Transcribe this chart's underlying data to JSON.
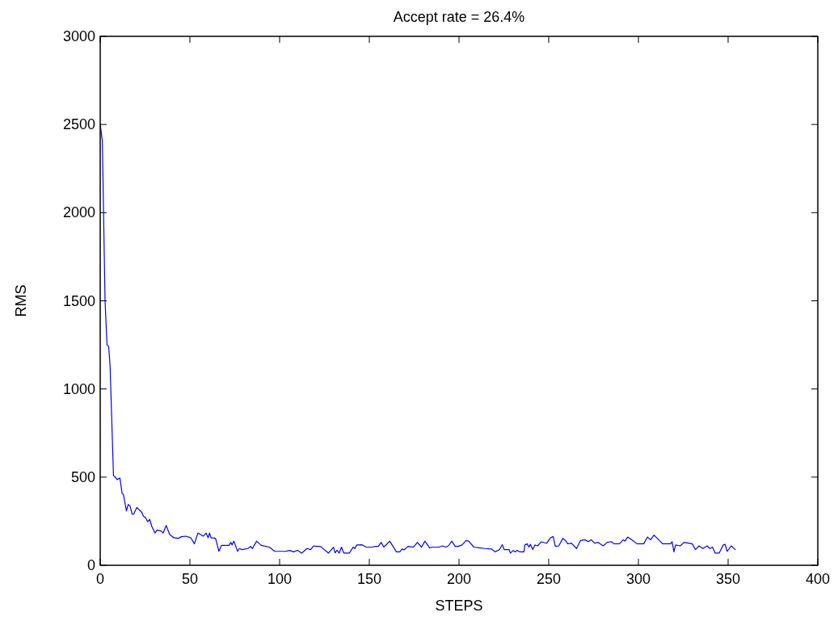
{
  "chart_data": {
    "type": "line",
    "title": "Accept rate = 26.4%",
    "xlabel": "STEPS",
    "ylabel": "RMS",
    "xlim": [
      0,
      400
    ],
    "xticks": [
      0,
      50,
      100,
      150,
      200,
      250,
      300,
      350,
      400
    ],
    "ylim": [
      0,
      3000
    ],
    "yticks": [
      0,
      500,
      1000,
      1500,
      2000,
      2500,
      3000
    ],
    "grid": false,
    "marker": "none",
    "line_style": "solid",
    "series": [
      {
        "color": "#0000ff",
        "x": [
          0,
          1.2,
          2.7,
          3.8,
          4.7,
          5.5,
          7.4,
          8.4,
          9.4,
          11,
          12.2,
          13,
          14.6,
          15.6,
          16.6,
          17.8,
          18.6,
          20.4,
          23.2,
          24.1,
          25.3,
          26.4,
          27.6,
          28.8,
          30.5,
          31.7,
          33.8,
          35.1,
          36.8,
          38.7,
          41,
          43.5,
          45.3,
          47.7,
          50.5,
          52.5,
          54.5,
          57.5,
          59,
          60.2,
          60.9,
          61.8,
          64.3,
          66.2,
          67.6,
          71.8,
          72.8,
          73.5,
          74.5,
          76.6,
          77.6,
          79.1,
          82.3,
          83.8,
          84.8,
          87.2,
          89.8,
          94.3,
          97.3,
          103.3,
          105.6,
          107.8,
          110,
          112.3,
          115.3,
          117.3,
          119,
          121,
          122.8,
          127.3,
          130,
          131,
          132,
          133.2,
          134.5,
          135.8,
          138.9,
          141,
          142,
          143,
          146,
          148.3,
          151.3,
          153.5,
          155,
          156.6,
          158.1,
          161.4,
          165.1,
          167,
          168.2,
          169.3,
          171.6,
          174.6,
          176.8,
          179.1,
          181,
          183.6,
          185,
          188.8,
          190.8,
          192.6,
          194.1,
          196,
          197.9,
          199.4,
          201.7,
          203.9,
          205.4,
          208.3,
          211.3,
          214.4,
          218.2,
          220.1,
          222.6,
          224.1,
          225.2,
          227.9,
          228.7,
          230.2,
          231.4,
          232.4,
          233.9,
          236.2,
          236.7,
          238,
          239,
          239.8,
          241.1,
          242.3,
          243.8,
          245.9,
          248.9,
          251,
          252.5,
          253.7,
          255.6,
          257.9,
          259.4,
          260.6,
          262.7,
          265.5,
          267.7,
          270,
          272.2,
          273.7,
          275.6,
          277.4,
          280.4,
          282.6,
          284.9,
          286.4,
          289.4,
          291.6,
          292.5,
          294,
          296.2,
          299.2,
          303,
          305,
          306.8,
          308.7,
          311.3,
          313.5,
          318,
          318.8,
          319.8,
          320.7,
          323.3,
          325.5,
          330,
          331.8,
          333.8,
          336,
          338.3,
          339.8,
          341.3,
          342.8,
          345,
          347.3,
          348.3,
          349.5,
          351.8,
          354
        ],
        "values": [
          2502,
          2407,
          1500,
          1250,
          1242,
          1133,
          508,
          500,
          486,
          495,
          408,
          400,
          308,
          345,
          337,
          290,
          290,
          328,
          300,
          278,
          270,
          247,
          260,
          220,
          183,
          200,
          195,
          183,
          226,
          175,
          156,
          153,
          162,
          165,
          156,
          122,
          183,
          165,
          183,
          156,
          183,
          156,
          153,
          79,
          113,
          113,
          130,
          115,
          137,
          79,
          95,
          89,
          95,
          107,
          95,
          137,
          113,
          103,
          79,
          79,
          84,
          76,
          85,
          69,
          95,
          89,
          110,
          107,
          107,
          69,
          103,
          70,
          85,
          69,
          103,
          69,
          69,
          103,
          95,
          115,
          116,
          103,
          103,
          107,
          107,
          130,
          103,
          137,
          76,
          76,
          92,
          87,
          107,
          103,
          130,
          103,
          137,
          99,
          103,
          103,
          110,
          103,
          110,
          137,
          107,
          107,
          115,
          140,
          137,
          103,
          99,
          95,
          92,
          76,
          89,
          117,
          89,
          89,
          69,
          84,
          76,
          85,
          76,
          76,
          115,
          122,
          103,
          119,
          89,
          115,
          110,
          133,
          125,
          156,
          163,
          107,
          110,
          153,
          140,
          122,
          125,
          95,
          140,
          145,
          134,
          145,
          125,
          130,
          110,
          130,
          134,
          122,
          122,
          145,
          137,
          160,
          145,
          122,
          122,
          160,
          145,
          171,
          145,
          122,
          122,
          134,
          76,
          115,
          110,
          130,
          122,
          89,
          110,
          95,
          110,
          95,
          103,
          69,
          69,
          115,
          119,
          79,
          110,
          89
        ]
      }
    ]
  }
}
